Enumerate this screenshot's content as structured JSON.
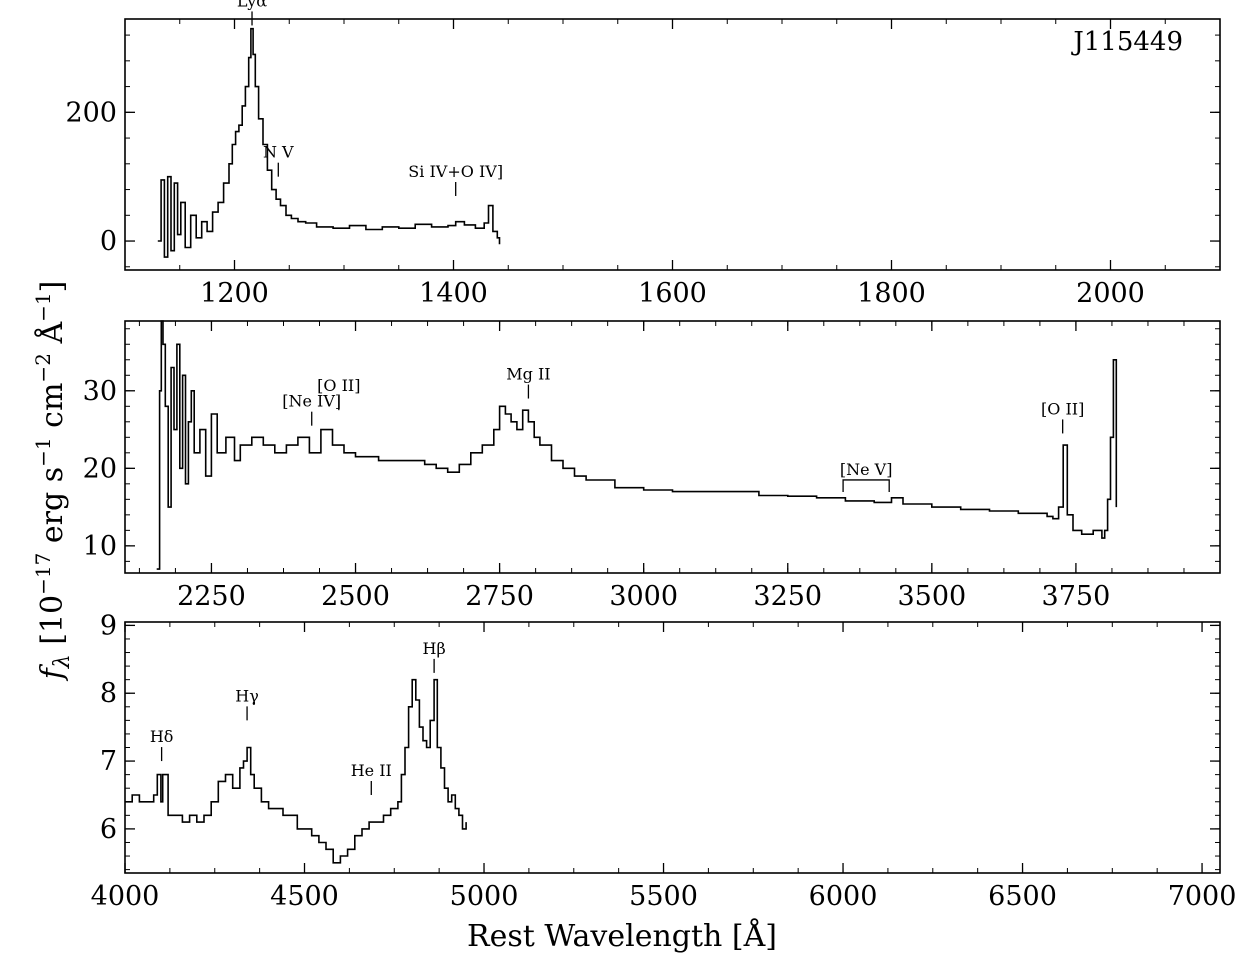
{
  "figure": {
    "object_label": "J115449",
    "ylabel": "f_λ [10^−17 erg s^−1 cm^−2 Å^−1]",
    "ylabel_parts": {
      "f": "f",
      "lambda": "λ",
      "bracket": " [10",
      "exp1": "−17",
      "erg": " erg s",
      "exp2": "−1",
      "cm": " cm",
      "exp3": "−2",
      "A": " Å",
      "exp4": "−1",
      "close": "]"
    },
    "xlabel": "Rest Wavelength [Å]"
  },
  "chart_data": [
    {
      "type": "line",
      "panel": "top",
      "xlim": [
        1100,
        2100
      ],
      "ylim": [
        -45,
        345
      ],
      "xticks": [
        1200,
        1400,
        1600,
        1800,
        2000
      ],
      "yticks": [
        0,
        200
      ],
      "series": [
        {
          "x": [
            1130,
            1133,
            1136,
            1139,
            1142,
            1145,
            1148,
            1151,
            1155,
            1160,
            1165,
            1170,
            1175,
            1180,
            1185,
            1190,
            1195,
            1198,
            1201,
            1204,
            1207,
            1210,
            1213,
            1215,
            1217,
            1219,
            1222,
            1226,
            1230,
            1234,
            1238,
            1242,
            1247,
            1252,
            1258,
            1265,
            1275,
            1290,
            1305,
            1320,
            1335,
            1350,
            1365,
            1380,
            1395,
            1402,
            1410,
            1420,
            1428,
            1432,
            1436,
            1440,
            1442
          ],
          "y": [
            0,
            95,
            -25,
            100,
            -15,
            90,
            10,
            60,
            -10,
            40,
            5,
            30,
            15,
            45,
            60,
            90,
            120,
            150,
            170,
            180,
            210,
            240,
            285,
            330,
            290,
            240,
            190,
            150,
            110,
            80,
            65,
            55,
            40,
            35,
            30,
            28,
            22,
            20,
            24,
            18,
            22,
            20,
            26,
            22,
            24,
            30,
            25,
            20,
            28,
            55,
            15,
            5,
            -5
          ]
        }
      ],
      "lines": [
        {
          "label": "Lyα",
          "x": 1216,
          "y": 335
        },
        {
          "label": "N V",
          "x": 1240,
          "y": 100
        },
        {
          "label": "Si IV+O IV]",
          "x": 1402,
          "y": 70
        }
      ]
    },
    {
      "type": "line",
      "panel": "middle",
      "xlim": [
        2100,
        4000
      ],
      "ylim": [
        6.5,
        39
      ],
      "xticks": [
        2250,
        2500,
        2750,
        3000,
        3250,
        3500,
        3750
      ],
      "yticks": [
        10,
        20,
        30
      ],
      "series": [
        {
          "x": [
            2155,
            2160,
            2163,
            2166,
            2170,
            2175,
            2180,
            2185,
            2190,
            2195,
            2200,
            2205,
            2210,
            2215,
            2220,
            2230,
            2240,
            2250,
            2260,
            2275,
            2290,
            2300,
            2320,
            2340,
            2360,
            2380,
            2400,
            2420,
            2440,
            2460,
            2480,
            2500,
            2520,
            2540,
            2560,
            2580,
            2600,
            2620,
            2640,
            2660,
            2680,
            2700,
            2720,
            2740,
            2750,
            2760,
            2770,
            2780,
            2790,
            2800,
            2810,
            2820,
            2840,
            2860,
            2880,
            2900,
            2950,
            3000,
            3050,
            3100,
            3150,
            3200,
            3250,
            3300,
            3350,
            3400,
            3430,
            3450,
            3500,
            3550,
            3600,
            3650,
            3700,
            3710,
            3720,
            3728,
            3735,
            3745,
            3760,
            3780,
            3795,
            3800,
            3805,
            3810,
            3815,
            3820
          ],
          "y": [
            7,
            30,
            39,
            36,
            28,
            15,
            33,
            25,
            36,
            20,
            32,
            18,
            26,
            30,
            22,
            25,
            19,
            27,
            22,
            24,
            21,
            23,
            24,
            23,
            22,
            23,
            24,
            22,
            25,
            23,
            22,
            21.5,
            21.5,
            21,
            21,
            21,
            21,
            20.5,
            20,
            19.5,
            20.5,
            22,
            23,
            25,
            28,
            27,
            26,
            25,
            27.5,
            26,
            24,
            23,
            21,
            20,
            19,
            18.5,
            17.5,
            17.2,
            17,
            17,
            17,
            16.5,
            16.4,
            16.2,
            15.8,
            15.6,
            16.2,
            15.4,
            15,
            14.7,
            14.5,
            14.2,
            13.8,
            13.5,
            15,
            23,
            14,
            12,
            11.5,
            12,
            11,
            12,
            16,
            24,
            34,
            15
          ]
        }
      ],
      "lines": [
        {
          "label": "[Ne IV]",
          "x": 2424,
          "y": 25.5
        },
        {
          "label": "[O II]",
          "x": 2471,
          "y": 27.5
        },
        {
          "label": "Mg II",
          "x": 2800,
          "y": 29
        },
        {
          "label": "[Ne V]",
          "x_start": 3346,
          "x_end": 3426,
          "y": 18.5
        },
        {
          "label": "[O II]",
          "x": 3727,
          "y": 24.5
        }
      ]
    },
    {
      "type": "line",
      "panel": "bottom",
      "xlim": [
        4000,
        7050
      ],
      "ylim": [
        5.35,
        9.05
      ],
      "xticks": [
        4000,
        4500,
        5000,
        5500,
        6000,
        6500,
        7000
      ],
      "yticks": [
        6,
        7,
        8,
        9
      ],
      "series": [
        {
          "x": [
            4000,
            4020,
            4040,
            4060,
            4080,
            4090,
            4100,
            4105,
            4120,
            4140,
            4160,
            4180,
            4200,
            4220,
            4240,
            4260,
            4280,
            4300,
            4320,
            4330,
            4340,
            4350,
            4360,
            4380,
            4400,
            4420,
            4440,
            4460,
            4480,
            4500,
            4520,
            4540,
            4560,
            4580,
            4600,
            4620,
            4640,
            4660,
            4680,
            4700,
            4720,
            4740,
            4760,
            4770,
            4780,
            4790,
            4800,
            4810,
            4820,
            4830,
            4840,
            4850,
            4861,
            4870,
            4880,
            4890,
            4900,
            4910,
            4920,
            4930,
            4940,
            4950
          ],
          "y": [
            6.4,
            6.5,
            6.4,
            6.4,
            6.5,
            6.8,
            6.4,
            6.8,
            6.2,
            6.2,
            6.1,
            6.2,
            6.1,
            6.2,
            6.4,
            6.7,
            6.8,
            6.6,
            6.9,
            7.0,
            7.2,
            6.8,
            6.6,
            6.4,
            6.3,
            6.3,
            6.2,
            6.2,
            6.0,
            6.0,
            5.9,
            5.8,
            5.7,
            5.5,
            5.6,
            5.7,
            5.9,
            6.0,
            6.1,
            6.1,
            6.2,
            6.3,
            6.4,
            6.8,
            7.2,
            7.8,
            8.2,
            7.9,
            7.5,
            7.3,
            7.2,
            7.6,
            8.2,
            7.2,
            6.9,
            6.6,
            6.4,
            6.5,
            6.3,
            6.2,
            6.0,
            6.1
          ]
        }
      ],
      "lines": [
        {
          "label": "Hδ",
          "x": 4102,
          "y": 7.0
        },
        {
          "label": "Hγ",
          "x": 4340,
          "y": 7.6
        },
        {
          "label": "He II",
          "x": 4686,
          "y": 6.5
        },
        {
          "label": "Hβ",
          "x": 4861,
          "y": 8.3
        }
      ]
    }
  ]
}
